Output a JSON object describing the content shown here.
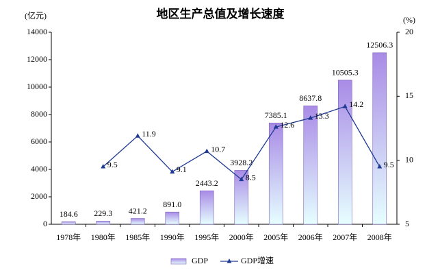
{
  "chart_data": {
    "type": "bar",
    "title": "地区生产总值及增长速度",
    "y_label": "(亿元)",
    "y2_label": "(%)",
    "categories": [
      "1978年",
      "1980年",
      "1985年",
      "1990年",
      "1995年",
      "2000年",
      "2005年",
      "2006年",
      "2007年",
      "2008年"
    ],
    "series": [
      {
        "name": "GDP",
        "type": "bar",
        "color": "#a98be6",
        "values": [
          184.6,
          229.3,
          421.2,
          891.0,
          2443.2,
          3928.2,
          7385.1,
          8637.8,
          10505.3,
          12506.3
        ],
        "value_labels": [
          "184.6",
          "229.3",
          "421.2",
          "891.0",
          "2443.2",
          "3928.2",
          "7385.1",
          "8637.8",
          "10505.3",
          "12506.3"
        ]
      },
      {
        "name": "GDP增速",
        "type": "line",
        "axis": "y2",
        "color": "#1f3a93",
        "values": [
          null,
          9.5,
          11.9,
          9.1,
          10.7,
          8.5,
          12.6,
          13.3,
          14.2,
          9.5
        ]
      }
    ],
    "ylim": [
      0,
      14000
    ],
    "yticks": [
      0,
      2000,
      4000,
      6000,
      8000,
      10000,
      12000,
      14000
    ],
    "y2lim": [
      5,
      20
    ],
    "y2ticks": [
      5,
      10,
      15,
      20
    ],
    "grid": false,
    "legend": "bottom"
  }
}
